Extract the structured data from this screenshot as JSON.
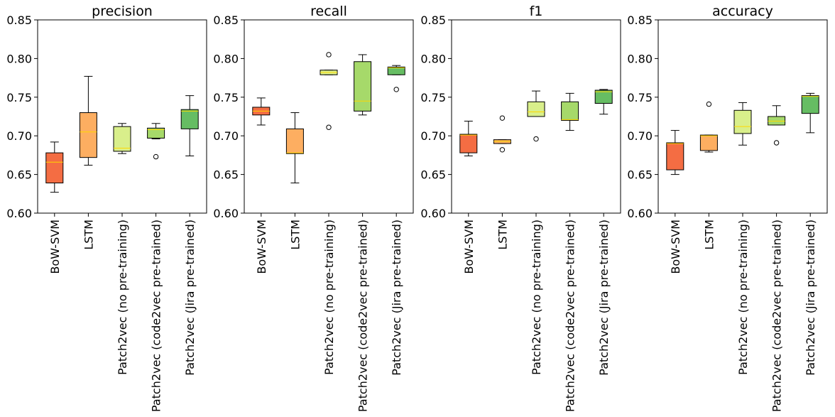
{
  "chart_data": [
    {
      "type": "box",
      "title": "precision",
      "categories": [
        "BoW-SVM",
        "LSTM",
        "Patch2vec (no pre-training)",
        "Patch2vec (code2vec pre-trained)",
        "Patch2vec (Jira pre-trained)"
      ],
      "ylim": [
        0.6,
        0.85
      ],
      "yticks": [
        "0.60",
        "0.65",
        "0.70",
        "0.75",
        "0.80",
        "0.85"
      ],
      "boxes": [
        {
          "whislo": 0.627,
          "q1": 0.639,
          "med": 0.666,
          "q3": 0.678,
          "whishi": 0.692,
          "fliers": []
        },
        {
          "whislo": 0.662,
          "q1": 0.672,
          "med": 0.705,
          "q3": 0.73,
          "whishi": 0.777,
          "fliers": []
        },
        {
          "whislo": 0.677,
          "q1": 0.68,
          "med": 0.684,
          "q3": 0.712,
          "whishi": 0.716,
          "fliers": []
        },
        {
          "whislo": 0.696,
          "q1": 0.697,
          "med": 0.708,
          "q3": 0.71,
          "whishi": 0.716,
          "fliers": [
            0.673
          ]
        },
        {
          "whislo": 0.674,
          "q1": 0.709,
          "med": 0.732,
          "q3": 0.734,
          "whishi": 0.752,
          "fliers": []
        }
      ]
    },
    {
      "type": "box",
      "title": "recall",
      "categories": [
        "BoW-SVM",
        "LSTM",
        "Patch2vec (no pre-training)",
        "Patch2vec (code2vec pre-trained)",
        "Patch2vec (Jira pre-trained)"
      ],
      "ylim": [
        0.6,
        0.85
      ],
      "yticks": [
        "0.60",
        "0.65",
        "0.70",
        "0.75",
        "0.80",
        "0.85"
      ],
      "boxes": [
        {
          "whislo": 0.714,
          "q1": 0.727,
          "med": 0.732,
          "q3": 0.737,
          "whishi": 0.749,
          "fliers": []
        },
        {
          "whislo": 0.639,
          "q1": 0.677,
          "med": 0.678,
          "q3": 0.709,
          "whishi": 0.73,
          "fliers": []
        },
        {
          "whislo": 0.779,
          "q1": 0.779,
          "med": 0.782,
          "q3": 0.785,
          "whishi": 0.785,
          "fliers": [
            0.711,
            0.805
          ]
        },
        {
          "whislo": 0.727,
          "q1": 0.732,
          "med": 0.745,
          "q3": 0.796,
          "whishi": 0.805,
          "fliers": []
        },
        {
          "whislo": 0.779,
          "q1": 0.779,
          "med": 0.788,
          "q3": 0.789,
          "whishi": 0.791,
          "fliers": [
            0.76
          ]
        }
      ]
    },
    {
      "type": "box",
      "title": "f1",
      "categories": [
        "BoW-SVM",
        "LSTM",
        "Patch2vec (no pre-training)",
        "Patch2vec (code2vec pre-trained)",
        "Patch2vec (Jira pre-trained)"
      ],
      "ylim": [
        0.6,
        0.85
      ],
      "yticks": [
        "0.60",
        "0.65",
        "0.70",
        "0.75",
        "0.80",
        "0.85"
      ],
      "boxes": [
        {
          "whislo": 0.674,
          "q1": 0.678,
          "med": 0.701,
          "q3": 0.702,
          "whishi": 0.719,
          "fliers": []
        },
        {
          "whislo": 0.69,
          "q1": 0.69,
          "med": 0.693,
          "q3": 0.695,
          "whishi": 0.695,
          "fliers": [
            0.682,
            0.723
          ]
        },
        {
          "whislo": 0.725,
          "q1": 0.725,
          "med": 0.731,
          "q3": 0.744,
          "whishi": 0.758,
          "fliers": [
            0.696
          ]
        },
        {
          "whislo": 0.707,
          "q1": 0.72,
          "med": 0.721,
          "q3": 0.744,
          "whishi": 0.755,
          "fliers": []
        },
        {
          "whislo": 0.728,
          "q1": 0.742,
          "med": 0.757,
          "q3": 0.759,
          "whishi": 0.76,
          "fliers": []
        }
      ]
    },
    {
      "type": "box",
      "title": "accuracy",
      "categories": [
        "BoW-SVM",
        "LSTM",
        "Patch2vec (no pre-training)",
        "Patch2vec (code2vec pre-trained)",
        "Patch2vec (Jira pre-trained)"
      ],
      "ylim": [
        0.6,
        0.85
      ],
      "yticks": [
        "0.60",
        "0.65",
        "0.70",
        "0.75",
        "0.80",
        "0.85"
      ],
      "boxes": [
        {
          "whislo": 0.65,
          "q1": 0.656,
          "med": 0.69,
          "q3": 0.691,
          "whishi": 0.707,
          "fliers": []
        },
        {
          "whislo": 0.679,
          "q1": 0.681,
          "med": 0.7,
          "q3": 0.701,
          "whishi": 0.701,
          "fliers": [
            0.741
          ]
        },
        {
          "whislo": 0.688,
          "q1": 0.703,
          "med": 0.712,
          "q3": 0.733,
          "whishi": 0.743,
          "fliers": []
        },
        {
          "whislo": 0.714,
          "q1": 0.714,
          "med": 0.719,
          "q3": 0.725,
          "whishi": 0.739,
          "fliers": [
            0.691
          ]
        },
        {
          "whislo": 0.704,
          "q1": 0.729,
          "med": 0.751,
          "q3": 0.752,
          "whishi": 0.755,
          "fliers": []
        }
      ]
    }
  ],
  "box_colors": [
    "#f46d43",
    "#fdae61",
    "#d9ef8b",
    "#a6d96a",
    "#66bd63"
  ],
  "median_color": "#ffd700"
}
